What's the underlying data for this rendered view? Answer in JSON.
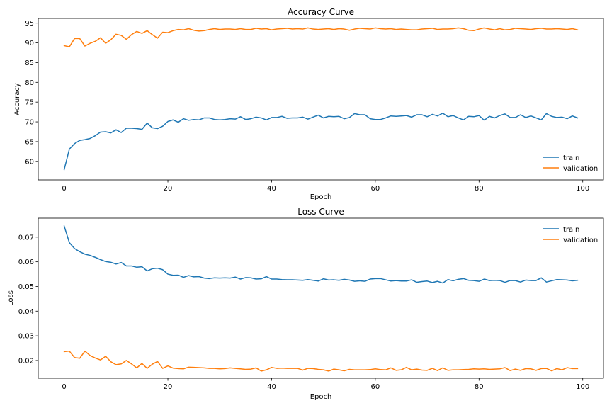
{
  "chart_data": [
    {
      "type": "line",
      "title": "Accuracy Curve",
      "xlabel": "Epoch",
      "ylabel": "Accuracy",
      "xlim": [
        -5,
        104
      ],
      "ylim": [
        55.3,
        96.2
      ],
      "xticks": [
        0,
        20,
        40,
        60,
        80,
        100
      ],
      "yticks": [
        60,
        65,
        70,
        75,
        80,
        85,
        90,
        95
      ],
      "legend": "lower-right",
      "grid": false,
      "series": [
        {
          "name": "train",
          "color": "#1f77b4",
          "values": [
            57.9,
            63.1,
            64.5,
            65.3,
            65.5,
            65.8,
            66.5,
            67.4,
            67.5,
            67.2,
            68.0,
            67.3,
            68.4,
            68.4,
            68.3,
            68.1,
            69.7,
            68.5,
            68.3,
            68.9,
            70.1,
            70.5,
            69.9,
            70.8,
            70.4,
            70.6,
            70.5,
            71.0,
            71.0,
            70.6,
            70.5,
            70.6,
            70.8,
            70.7,
            71.3,
            70.6,
            70.8,
            71.2,
            71.0,
            70.5,
            71.1,
            71.1,
            71.4,
            70.9,
            71.0,
            71.0,
            71.2,
            70.7,
            71.2,
            71.7,
            71.0,
            71.4,
            71.3,
            71.4,
            70.8,
            71.1,
            72.1,
            71.8,
            71.8,
            70.8,
            70.6,
            70.6,
            71.0,
            71.5,
            71.4,
            71.5,
            71.6,
            71.2,
            71.8,
            71.8,
            71.3,
            71.9,
            71.5,
            72.2,
            71.3,
            71.6,
            71.0,
            70.5,
            71.4,
            71.3,
            71.6,
            70.4,
            71.4,
            71.0,
            71.6,
            72.0,
            71.1,
            71.1,
            71.8,
            71.1,
            71.5,
            71.0,
            70.5,
            72.1,
            71.4,
            71.1,
            71.2,
            70.8,
            71.5,
            71.0
          ]
        },
        {
          "name": "validation",
          "color": "#ff7f0e",
          "values": [
            89.3,
            89.0,
            91.1,
            91.1,
            89.2,
            89.9,
            90.4,
            91.3,
            89.9,
            90.8,
            92.2,
            91.9,
            90.9,
            92.1,
            92.9,
            92.4,
            93.1,
            92.1,
            91.2,
            92.7,
            92.6,
            93.1,
            93.4,
            93.3,
            93.6,
            93.2,
            93.0,
            93.1,
            93.4,
            93.6,
            93.4,
            93.5,
            93.5,
            93.4,
            93.6,
            93.4,
            93.4,
            93.7,
            93.5,
            93.6,
            93.3,
            93.5,
            93.6,
            93.7,
            93.5,
            93.6,
            93.5,
            93.8,
            93.5,
            93.4,
            93.5,
            93.6,
            93.4,
            93.6,
            93.5,
            93.2,
            93.5,
            93.7,
            93.6,
            93.5,
            93.8,
            93.6,
            93.5,
            93.6,
            93.4,
            93.5,
            93.4,
            93.3,
            93.3,
            93.5,
            93.6,
            93.7,
            93.4,
            93.5,
            93.5,
            93.6,
            93.8,
            93.6,
            93.2,
            93.1,
            93.5,
            93.8,
            93.5,
            93.3,
            93.6,
            93.3,
            93.4,
            93.7,
            93.6,
            93.5,
            93.4,
            93.6,
            93.7,
            93.5,
            93.5,
            93.6,
            93.5,
            93.4,
            93.6,
            93.3
          ]
        }
      ]
    },
    {
      "type": "line",
      "title": "Loss Curve",
      "xlabel": "Epoch",
      "ylabel": "Loss",
      "xlim": [
        -5,
        104
      ],
      "ylim": [
        0.0128,
        0.0777
      ],
      "xticks": [
        0,
        20,
        40,
        60,
        80,
        100
      ],
      "yticks": [
        0.02,
        0.03,
        0.04,
        0.05,
        0.06,
        0.07
      ],
      "legend": "upper-right",
      "grid": false,
      "series": [
        {
          "name": "train",
          "color": "#1f77b4",
          "values": [
            0.0745,
            0.0678,
            0.0654,
            0.0641,
            0.0631,
            0.0626,
            0.0618,
            0.0609,
            0.0601,
            0.0598,
            0.0591,
            0.0597,
            0.0583,
            0.0583,
            0.0578,
            0.058,
            0.0563,
            0.0572,
            0.0574,
            0.0568,
            0.055,
            0.0545,
            0.0546,
            0.0537,
            0.0544,
            0.0539,
            0.054,
            0.0534,
            0.0532,
            0.0535,
            0.0534,
            0.0535,
            0.0534,
            0.0538,
            0.053,
            0.0536,
            0.0535,
            0.053,
            0.0531,
            0.054,
            0.053,
            0.053,
            0.0528,
            0.0527,
            0.0527,
            0.0526,
            0.0525,
            0.0528,
            0.0525,
            0.0522,
            0.0531,
            0.0526,
            0.0527,
            0.0525,
            0.0529,
            0.0526,
            0.0521,
            0.0523,
            0.0521,
            0.053,
            0.0532,
            0.0532,
            0.0527,
            0.0522,
            0.0524,
            0.0522,
            0.0522,
            0.0527,
            0.0517,
            0.052,
            0.0522,
            0.0516,
            0.0521,
            0.0514,
            0.0528,
            0.0523,
            0.0529,
            0.0532,
            0.0525,
            0.0524,
            0.0521,
            0.053,
            0.0524,
            0.0525,
            0.0524,
            0.0517,
            0.0524,
            0.0524,
            0.0518,
            0.0526,
            0.0524,
            0.0524,
            0.0535,
            0.0518,
            0.0523,
            0.0528,
            0.0527,
            0.0526,
            0.0523,
            0.0525
          ]
        },
        {
          "name": "validation",
          "color": "#ff7f0e",
          "values": [
            0.0236,
            0.0238,
            0.0212,
            0.0209,
            0.0238,
            0.022,
            0.021,
            0.0202,
            0.0217,
            0.0195,
            0.0183,
            0.0186,
            0.02,
            0.0186,
            0.017,
            0.0188,
            0.0168,
            0.0185,
            0.0196,
            0.0168,
            0.0178,
            0.0169,
            0.0167,
            0.0166,
            0.0173,
            0.0172,
            0.0171,
            0.017,
            0.0168,
            0.0168,
            0.0166,
            0.0167,
            0.017,
            0.0168,
            0.0166,
            0.0164,
            0.0165,
            0.017,
            0.0157,
            0.0162,
            0.0172,
            0.0168,
            0.0169,
            0.0168,
            0.0168,
            0.0168,
            0.0161,
            0.0168,
            0.0167,
            0.0164,
            0.0162,
            0.0157,
            0.0165,
            0.0162,
            0.0158,
            0.0164,
            0.0162,
            0.0162,
            0.0162,
            0.0163,
            0.0166,
            0.0163,
            0.0162,
            0.017,
            0.016,
            0.0162,
            0.0172,
            0.0162,
            0.0165,
            0.0161,
            0.016,
            0.0168,
            0.0159,
            0.017,
            0.016,
            0.0162,
            0.0162,
            0.0163,
            0.0164,
            0.0166,
            0.0165,
            0.0166,
            0.0164,
            0.0165,
            0.0166,
            0.0171,
            0.0159,
            0.0165,
            0.016,
            0.0167,
            0.0166,
            0.016,
            0.0167,
            0.0168,
            0.0158,
            0.0167,
            0.0162,
            0.0171,
            0.0167,
            0.0167
          ]
        }
      ]
    }
  ]
}
